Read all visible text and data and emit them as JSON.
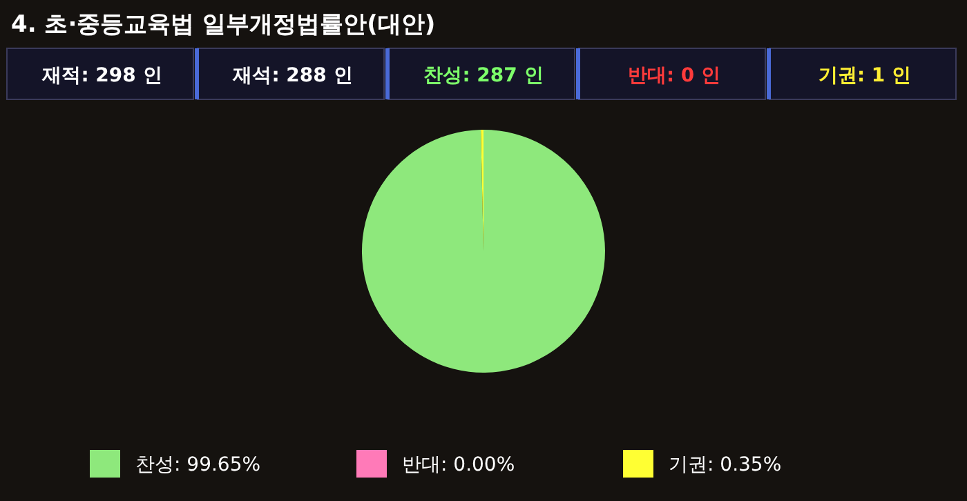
{
  "chart_data": {
    "type": "pie",
    "title": "4. 초·중등교육법 일부개정법률안(대안)",
    "annotations": [
      "재적: 298 인",
      "재석: 288 인",
      "찬성: 287 인",
      "반대:  0 인",
      "기권:  1 인"
    ],
    "categories": [
      "찬성",
      "반대",
      "기권"
    ],
    "values": [
      99.65,
      0,
      0.35
    ],
    "colors": [
      "#8ee87c",
      "#ff7ab8",
      "#ffff33"
    ],
    "value_labels": [
      "99.65%",
      "0.00%",
      "0.35%"
    ],
    "legend": "bottom"
  }
}
